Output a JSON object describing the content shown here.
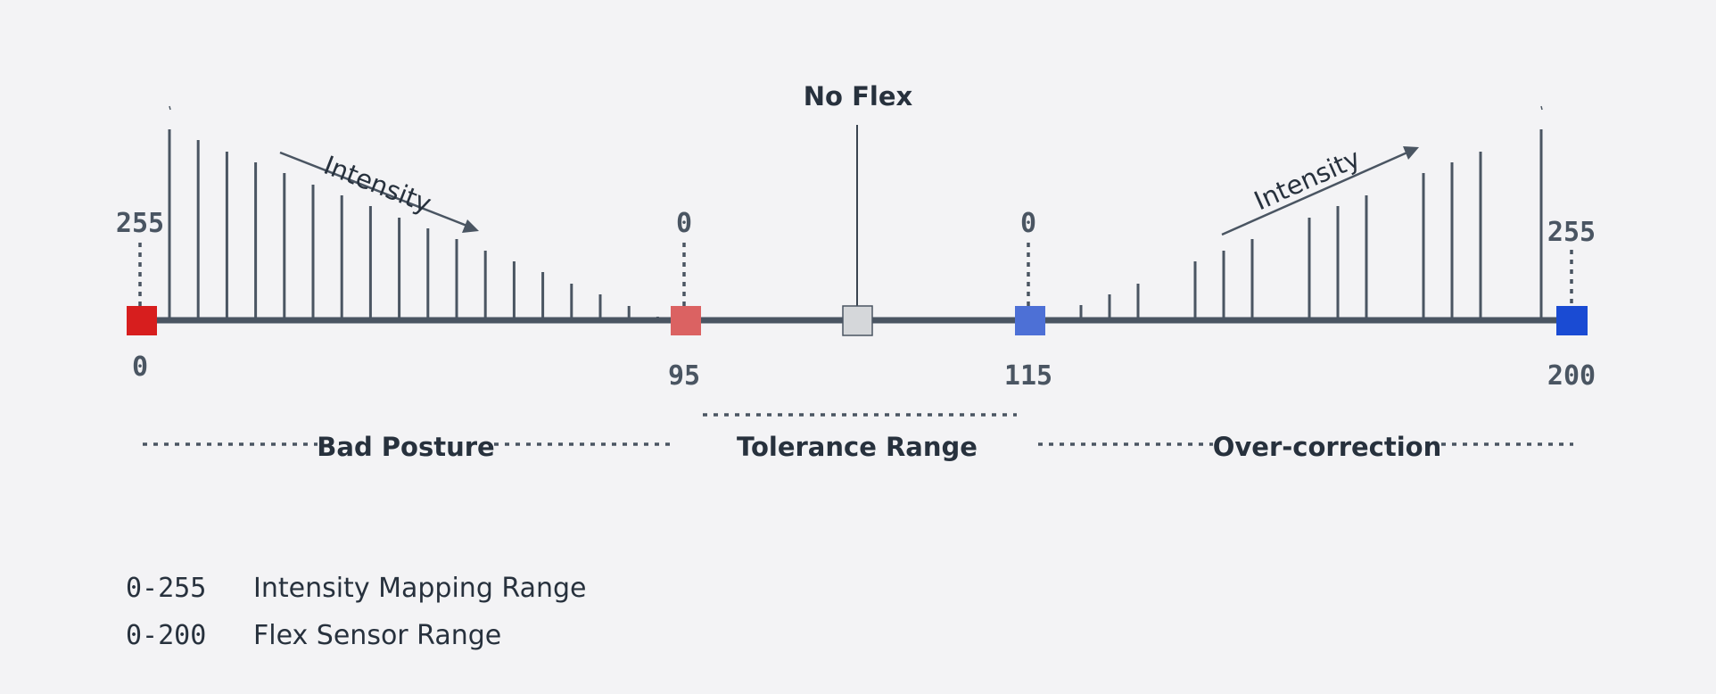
{
  "diagram": {
    "title": "No Flex",
    "colors": {
      "background": "#f3f3f5",
      "axis": "#4a5562",
      "text": "#27313d",
      "bad_posture_max": "#d71e1e",
      "bad_posture_min": "#db6262",
      "neutral": "#d5d7da",
      "over_correction_min": "#4d70d6",
      "over_correction_max": "#1a4bd3"
    },
    "markers": [
      {
        "id": "marker-0",
        "sensor_label": "0",
        "intensity_label": "255",
        "color": "#d71e1e"
      },
      {
        "id": "marker-95",
        "sensor_label": "95",
        "intensity_label": "0",
        "color": "#db6262"
      },
      {
        "id": "marker-no-flex",
        "color": "#d5d7da"
      },
      {
        "id": "marker-115",
        "sensor_label": "115",
        "intensity_label": "0",
        "color": "#4d70d6"
      },
      {
        "id": "marker-200",
        "sensor_label": "200",
        "intensity_label": "255",
        "color": "#1a4bd3"
      }
    ],
    "arrows": {
      "left_label": "Intensity",
      "right_label": "Intensity"
    },
    "ranges": {
      "bad_posture": "Bad Posture",
      "tolerance": "Tolerance Range",
      "over_correction": "Over-correction"
    },
    "legend": [
      {
        "range": "0-255",
        "label": "Intensity Mapping Range"
      },
      {
        "range": "0-200",
        "label": "Flex Sensor Range"
      }
    ]
  }
}
